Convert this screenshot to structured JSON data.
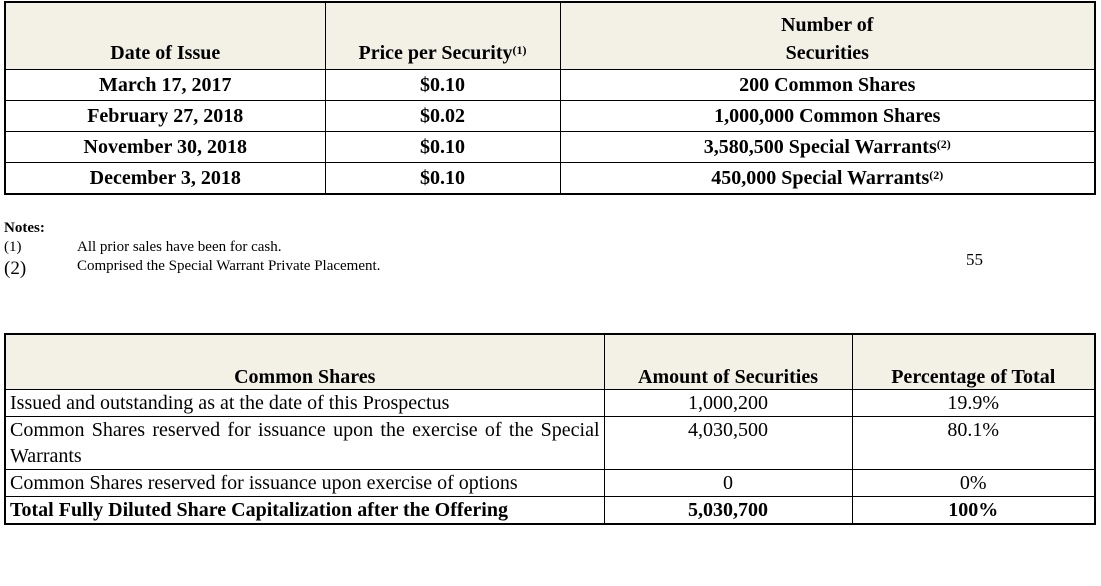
{
  "prior_sales": {
    "headers": {
      "date": "Date of Issue",
      "price": "Price per Security",
      "price_note": "(1)",
      "number_line1": "Number of",
      "number_line2": "Securities"
    },
    "rows": [
      {
        "date": "March 17, 2017",
        "price": "$0.10",
        "number": "200 Common Shares",
        "note": ""
      },
      {
        "date": "February 27, 2018",
        "price": "$0.02",
        "number": "1,000,000 Common Shares",
        "note": ""
      },
      {
        "date": "November 30, 2018",
        "price": "$0.10",
        "number": "3,580,500 Special Warrants",
        "note": "(2)"
      },
      {
        "date": "December 3, 2018",
        "price": "$0.10",
        "number": "450,000 Special Warrants",
        "note": "(2)"
      }
    ]
  },
  "notes": {
    "title": "Notes:",
    "items": [
      {
        "num": "(1)",
        "text": "All prior sales have been for cash."
      },
      {
        "num": "(2)",
        "text": "Comprised the Special Warrant Private Placement."
      }
    ]
  },
  "page_number": "55",
  "capitalization": {
    "headers": [
      "Common Shares",
      "Amount of Securities",
      "Percentage of Total"
    ],
    "rows": [
      {
        "label": "Issued and outstanding as at the date of this Prospectus",
        "amount": "1,000,200",
        "pct": "19.9%"
      },
      {
        "label": "Common Shares reserved for issuance upon the exercise of the Special Warrants",
        "amount": "4,030,500",
        "pct": "80.1%"
      },
      {
        "label": "Common Shares reserved for issuance upon exercise of options",
        "amount": "0",
        "pct": "0%"
      },
      {
        "label": "Total Fully Diluted Share Capitalization after the Offering",
        "amount": "5,030,700",
        "pct": "100%"
      }
    ]
  }
}
